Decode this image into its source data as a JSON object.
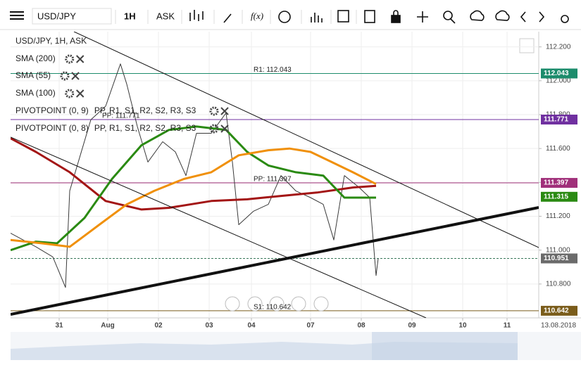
{
  "toolbar": {
    "symbol": "USD/JPY",
    "interval": "1H",
    "price_type": "ASK",
    "fx": "f(x)"
  },
  "legend": {
    "title": "USD/JPY, 1H, ASK",
    "indicators": [
      {
        "name": "SMA (200)",
        "color": "#a31515"
      },
      {
        "name": "SMA (55)",
        "color": "#2a8a12"
      },
      {
        "name": "SMA (100)",
        "color": "#f0900a"
      },
      {
        "name": "PIVOTPOINT (0, 9)",
        "color": "#222222",
        "fields": "PP, R1, S1, R2, S2, R3, S3",
        "fields_color": "#8a2be2"
      },
      {
        "name": "PIVOTPOINT (0, 8)",
        "color": "#222222",
        "fields": "PP, R1, S1, R2, S2, R3, S3",
        "fields_color": "#a0307a"
      }
    ]
  },
  "chart_data": {
    "type": "line",
    "xlim": [
      0,
      250
    ],
    "ylim": [
      110.6,
      112.29
    ],
    "xticks": [
      {
        "value": 23,
        "label": "31"
      },
      {
        "value": 46,
        "label": "Aug"
      },
      {
        "value": 70,
        "label": "02"
      },
      {
        "value": 94,
        "label": "03"
      },
      {
        "value": 114,
        "label": "04"
      },
      {
        "value": 142,
        "label": "07"
      },
      {
        "value": 166,
        "label": "08"
      },
      {
        "value": 190,
        "label": "09"
      },
      {
        "value": 214,
        "label": "10"
      },
      {
        "value": 235,
        "label": "11"
      }
    ],
    "yticks": [
      {
        "value": 110.8,
        "label": "110.800"
      },
      {
        "value": 111.0,
        "label": "111.000"
      },
      {
        "value": 111.2,
        "label": "111.200"
      },
      {
        "value": 111.4,
        "label": "111.400"
      },
      {
        "value": 111.6,
        "label": "111.600"
      },
      {
        "value": 111.8,
        "label": "111.800"
      },
      {
        "value": 112.0,
        "label": "112.000"
      },
      {
        "value": 112.2,
        "label": "112.200"
      }
    ],
    "grid": true,
    "date_label": "13.08.2018",
    "series": [
      {
        "name": "USD/JPY",
        "color": "#3a3a3a",
        "width": 1,
        "x": [
          0,
          12,
          20,
          26,
          28,
          33,
          38,
          45,
          52,
          55,
          60,
          65,
          72,
          78,
          83,
          88,
          95,
          102,
          105,
          108,
          115,
          122,
          128,
          135,
          142,
          148,
          153,
          158,
          165,
          170,
          173,
          174
        ],
        "values": [
          111.1,
          111.02,
          110.96,
          110.78,
          111.35,
          111.56,
          111.77,
          111.85,
          112.1,
          111.98,
          111.73,
          111.52,
          111.64,
          111.58,
          111.44,
          111.69,
          111.69,
          111.81,
          111.52,
          111.15,
          111.23,
          111.27,
          111.44,
          111.35,
          111.31,
          111.27,
          111.06,
          111.44,
          111.37,
          111.31,
          110.85,
          110.95
        ]
      },
      {
        "name": "SMA (200)",
        "color": "#a31515",
        "width": 3,
        "x": [
          0,
          12,
          28,
          45,
          62,
          75,
          95,
          112,
          128,
          145,
          162,
          173
        ],
        "values": [
          111.66,
          111.58,
          111.46,
          111.29,
          111.24,
          111.25,
          111.29,
          111.3,
          111.32,
          111.34,
          111.37,
          111.38
        ]
      },
      {
        "name": "SMA (55)",
        "color": "#2a8a12",
        "width": 3,
        "x": [
          0,
          12,
          22,
          35,
          48,
          62,
          75,
          88,
          102,
          112,
          122,
          135,
          148,
          158,
          165,
          173
        ],
        "values": [
          111.0,
          111.05,
          111.04,
          111.19,
          111.42,
          111.62,
          111.71,
          111.73,
          111.71,
          111.58,
          111.5,
          111.46,
          111.44,
          111.31,
          111.31,
          111.31
        ]
      },
      {
        "name": "SMA (100)",
        "color": "#f0900a",
        "width": 3,
        "x": [
          0,
          15,
          28,
          42,
          55,
          68,
          82,
          95,
          108,
          122,
          132,
          142,
          152,
          162,
          173
        ],
        "values": [
          111.06,
          111.04,
          111.02,
          111.15,
          111.27,
          111.35,
          111.42,
          111.46,
          111.56,
          111.59,
          111.6,
          111.58,
          111.52,
          111.46,
          111.39
        ]
      }
    ],
    "levels": [
      {
        "label": "R1: 112.043",
        "value": 112.043,
        "color": "#1c8c6c"
      },
      {
        "label": "PP: 111.771",
        "value": 111.771,
        "color": "#7030a0"
      },
      {
        "label": "PP: 111.397",
        "value": 111.397,
        "color": "#a0307a"
      },
      {
        "label": "S1: 110.642",
        "value": 110.642,
        "color": "#7a5c1a"
      }
    ],
    "price_tags": [
      {
        "value": 111.315,
        "color": "#2a8a12",
        "line": false
      },
      {
        "value": 110.951,
        "color": "#6b6b6b",
        "line": true
      }
    ]
  }
}
